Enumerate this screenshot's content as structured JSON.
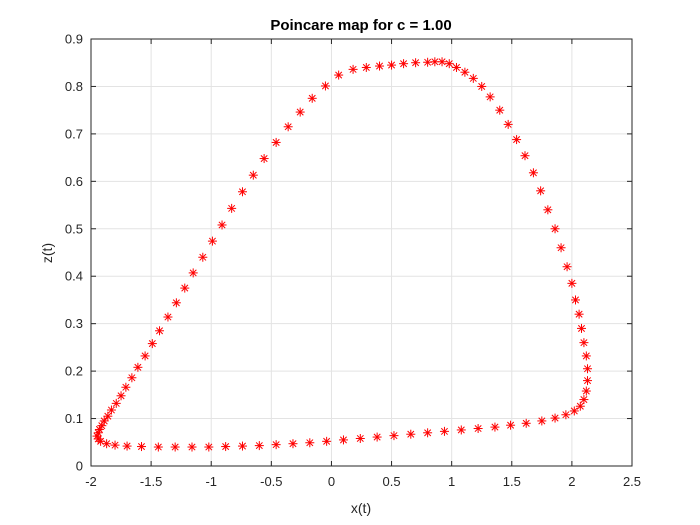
{
  "chart_data": {
    "type": "scatter",
    "title": "Poincare map for c = 1.00",
    "xlabel": "x(t)",
    "ylabel": "z(t)",
    "xlim": [
      -2,
      2.5
    ],
    "ylim": [
      0,
      0.9
    ],
    "xticks": [
      "-2",
      "-1.5",
      "-1",
      "-0.5",
      "0",
      "0.5",
      "1",
      "1.5",
      "2",
      "2.5"
    ],
    "yticks": [
      "0",
      "0.1",
      "0.2",
      "0.3",
      "0.4",
      "0.5",
      "0.6",
      "0.7",
      "0.8",
      "0.9"
    ],
    "grid": true,
    "marker": "asterisk",
    "color": "#ff0000",
    "points": [
      [
        -1.95,
        0.063
      ],
      [
        -1.94,
        0.07
      ],
      [
        -1.93,
        0.077
      ],
      [
        -1.91,
        0.085
      ],
      [
        -1.89,
        0.095
      ],
      [
        -1.86,
        0.105
      ],
      [
        -1.83,
        0.118
      ],
      [
        -1.79,
        0.132
      ],
      [
        -1.75,
        0.148
      ],
      [
        -1.71,
        0.166
      ],
      [
        -1.66,
        0.186
      ],
      [
        -1.61,
        0.208
      ],
      [
        -1.55,
        0.232
      ],
      [
        -1.49,
        0.258
      ],
      [
        -1.43,
        0.285
      ],
      [
        -1.36,
        0.314
      ],
      [
        -1.29,
        0.344
      ],
      [
        -1.22,
        0.375
      ],
      [
        -1.15,
        0.407
      ],
      [
        -1.07,
        0.44
      ],
      [
        -0.99,
        0.474
      ],
      [
        -0.91,
        0.508
      ],
      [
        -0.83,
        0.543
      ],
      [
        -0.74,
        0.578
      ],
      [
        -0.65,
        0.613
      ],
      [
        -0.56,
        0.648
      ],
      [
        -0.46,
        0.682
      ],
      [
        -0.36,
        0.715
      ],
      [
        -0.26,
        0.746
      ],
      [
        -0.16,
        0.775
      ],
      [
        -0.05,
        0.801
      ],
      [
        0.06,
        0.824
      ],
      [
        0.18,
        0.836
      ],
      [
        0.29,
        0.84
      ],
      [
        0.4,
        0.843
      ],
      [
        0.5,
        0.845
      ],
      [
        0.6,
        0.848
      ],
      [
        0.7,
        0.85
      ],
      [
        0.8,
        0.851
      ],
      [
        0.86,
        0.852
      ],
      [
        0.92,
        0.852
      ],
      [
        0.98,
        0.848
      ],
      [
        1.04,
        0.84
      ],
      [
        1.11,
        0.83
      ],
      [
        1.18,
        0.817
      ],
      [
        1.25,
        0.8
      ],
      [
        1.32,
        0.778
      ],
      [
        1.4,
        0.75
      ],
      [
        1.47,
        0.72
      ],
      [
        1.54,
        0.688
      ],
      [
        1.61,
        0.654
      ],
      [
        1.68,
        0.618
      ],
      [
        1.74,
        0.58
      ],
      [
        1.8,
        0.54
      ],
      [
        1.86,
        0.5
      ],
      [
        1.91,
        0.46
      ],
      [
        1.96,
        0.42
      ],
      [
        2.0,
        0.385
      ],
      [
        2.03,
        0.35
      ],
      [
        2.06,
        0.32
      ],
      [
        2.08,
        0.29
      ],
      [
        2.1,
        0.26
      ],
      [
        2.12,
        0.232
      ],
      [
        2.13,
        0.205
      ],
      [
        2.13,
        0.18
      ],
      [
        2.12,
        0.158
      ],
      [
        2.1,
        0.14
      ],
      [
        2.07,
        0.126
      ],
      [
        2.02,
        0.116
      ],
      [
        1.95,
        0.108
      ],
      [
        1.86,
        0.101
      ],
      [
        1.75,
        0.095
      ],
      [
        1.62,
        0.09
      ],
      [
        1.49,
        0.086
      ],
      [
        1.36,
        0.082
      ],
      [
        1.22,
        0.079
      ],
      [
        1.08,
        0.076
      ],
      [
        0.94,
        0.073
      ],
      [
        0.8,
        0.07
      ],
      [
        0.66,
        0.067
      ],
      [
        0.52,
        0.064
      ],
      [
        0.38,
        0.061
      ],
      [
        0.24,
        0.058
      ],
      [
        0.1,
        0.055
      ],
      [
        -0.04,
        0.052
      ],
      [
        -0.18,
        0.049
      ],
      [
        -0.32,
        0.047
      ],
      [
        -0.46,
        0.045
      ],
      [
        -0.6,
        0.043
      ],
      [
        -0.74,
        0.042
      ],
      [
        -0.88,
        0.041
      ],
      [
        -1.02,
        0.04
      ],
      [
        -1.16,
        0.04
      ],
      [
        -1.3,
        0.04
      ],
      [
        -1.44,
        0.04
      ],
      [
        -1.58,
        0.041
      ],
      [
        -1.7,
        0.042
      ],
      [
        -1.8,
        0.044
      ],
      [
        -1.87,
        0.047
      ],
      [
        -1.92,
        0.052
      ],
      [
        -1.94,
        0.057
      ]
    ]
  }
}
